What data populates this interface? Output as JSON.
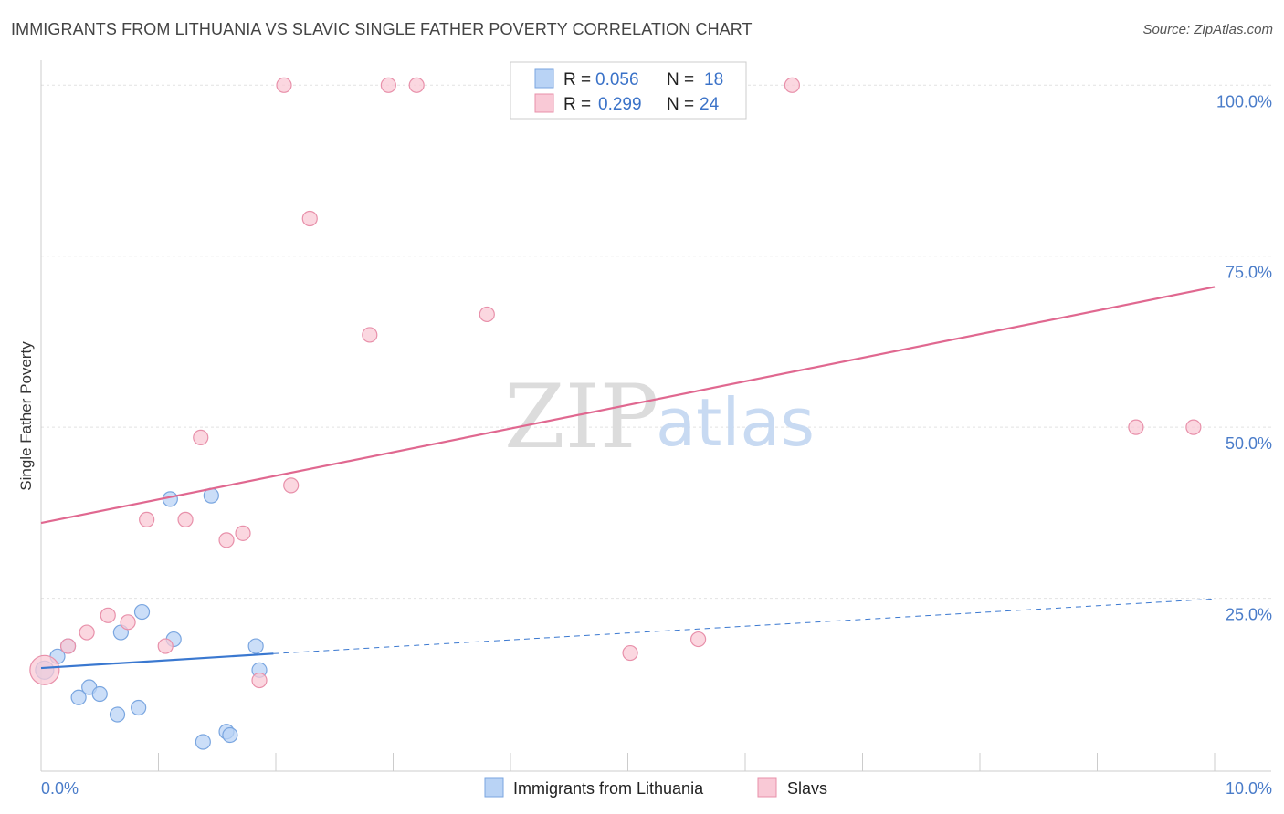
{
  "title": "IMMIGRANTS FROM LITHUANIA VS SLAVIC SINGLE FATHER POVERTY CORRELATION CHART",
  "source": "Source: ZipAtlas.com",
  "watermark": {
    "zip": "ZIP",
    "atlas": "atlas"
  },
  "colors": {
    "blue_fill": "#b9d3f5",
    "blue_stroke": "#7aa6e0",
    "blue_line": "#3a78d0",
    "pink_fill": "#f9c9d6",
    "pink_stroke": "#e890aa",
    "pink_line": "#e06890",
    "tick_text": "#4a7cc9",
    "grid": "#e2e2e2"
  },
  "legend": {
    "rows": [
      {
        "r_label": "R =",
        "r_value": "0.056",
        "n_label": "N =",
        "n_value": "18"
      },
      {
        "r_label": "R =",
        "r_value": "0.299",
        "n_label": "N =",
        "n_value": "24"
      }
    ]
  },
  "bottom_legend": [
    "Immigrants from Lithuania",
    "Slavs"
  ],
  "chart_data": {
    "type": "scatter",
    "xlabel": "",
    "ylabel": "Single Father Poverty",
    "xlim": [
      0,
      10
    ],
    "ylim": [
      0,
      100
    ],
    "x_tick_labels": [
      "0.0%",
      "10.0%"
    ],
    "y_ticks": [
      25,
      50,
      75,
      100
    ],
    "y_tick_labels": [
      "25.0%",
      "50.0%",
      "75.0%",
      "100.0%"
    ],
    "grid": true,
    "legend_position": "top-center",
    "series": [
      {
        "name": "Immigrants from Lithuania",
        "points": [
          [
            0.03,
            14.5
          ],
          [
            0.14,
            16.5
          ],
          [
            0.23,
            18.0
          ],
          [
            0.32,
            10.5
          ],
          [
            0.41,
            12.0
          ],
          [
            0.5,
            11.0
          ],
          [
            0.65,
            8.0
          ],
          [
            0.68,
            20.0
          ],
          [
            0.83,
            9.0
          ],
          [
            0.86,
            23.0
          ],
          [
            1.1,
            39.5
          ],
          [
            1.13,
            19.0
          ],
          [
            1.38,
            4.0
          ],
          [
            1.45,
            40.0
          ],
          [
            1.58,
            5.5
          ],
          [
            1.61,
            5.0
          ],
          [
            1.83,
            18.0
          ],
          [
            1.86,
            14.5
          ]
        ],
        "trend": {
          "x": [
            0,
            1.98
          ],
          "y": [
            14.8,
            16.9
          ],
          "dashed_to": [
            10,
            24.9
          ]
        }
      },
      {
        "name": "Slavs",
        "points": [
          [
            0.03,
            14.5
          ],
          [
            0.23,
            18.0
          ],
          [
            0.39,
            20.0
          ],
          [
            0.57,
            22.5
          ],
          [
            0.74,
            21.5
          ],
          [
            0.9,
            36.5
          ],
          [
            1.06,
            18.0
          ],
          [
            1.23,
            36.5
          ],
          [
            1.36,
            48.5
          ],
          [
            1.58,
            33.5
          ],
          [
            1.72,
            34.5
          ],
          [
            1.86,
            13.0
          ],
          [
            2.07,
            100.0
          ],
          [
            2.13,
            41.5
          ],
          [
            2.29,
            80.5
          ],
          [
            2.8,
            63.5
          ],
          [
            2.96,
            100.0
          ],
          [
            3.2,
            100.0
          ],
          [
            3.8,
            66.5
          ],
          [
            5.02,
            17.0
          ],
          [
            5.6,
            19.0
          ],
          [
            6.4,
            100.0
          ],
          [
            9.33,
            50.0
          ],
          [
            9.82,
            50.0
          ]
        ],
        "trend": {
          "x": [
            0,
            10
          ],
          "y": [
            36.0,
            70.5
          ]
        }
      }
    ]
  }
}
